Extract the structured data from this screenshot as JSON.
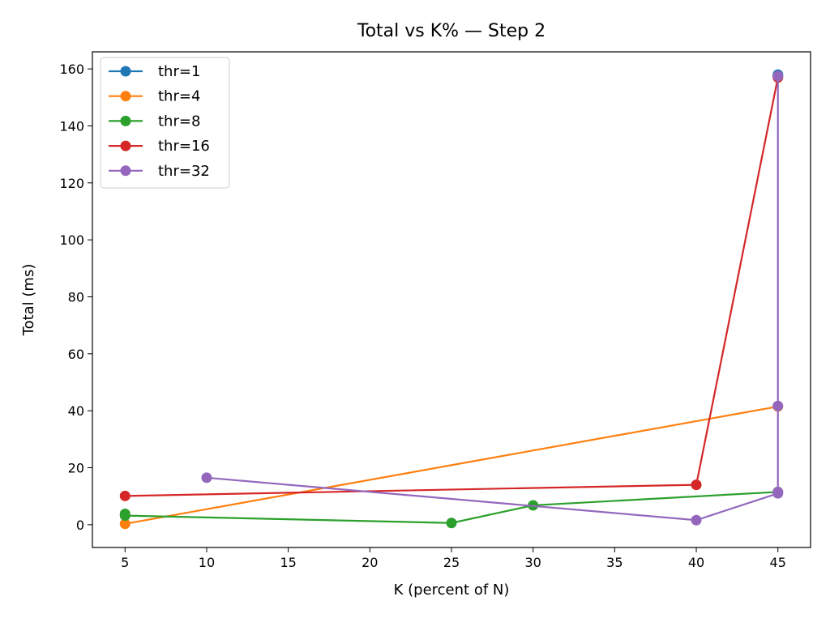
{
  "chart_data": {
    "type": "line",
    "title": "Total vs K% — Step 2",
    "xlabel": "K (percent of N)",
    "ylabel": "Total (ms)",
    "xlim": [
      3,
      47
    ],
    "ylim": [
      -8,
      166
    ],
    "xticks": [
      5,
      10,
      15,
      20,
      25,
      30,
      35,
      40,
      45
    ],
    "yticks": [
      0,
      20,
      40,
      60,
      80,
      100,
      120,
      140,
      160
    ],
    "grid": false,
    "legend_position": "top-left",
    "series": [
      {
        "name": "thr=1",
        "color": "#1f77b4",
        "points": [
          [
            45,
            158
          ],
          [
            45,
            157.5
          ]
        ]
      },
      {
        "name": "thr=4",
        "color": "#ff7f0e",
        "points": [
          [
            5,
            0.3
          ],
          [
            45,
            41.5
          ]
        ]
      },
      {
        "name": "thr=8",
        "color": "#2ca02c",
        "points": [
          [
            5,
            3.8
          ],
          [
            5,
            3.2
          ],
          [
            25,
            0.6
          ],
          [
            30,
            6.8
          ],
          [
            45,
            11.5
          ]
        ]
      },
      {
        "name": "thr=16",
        "color": "#d62728",
        "points": [
          [
            5,
            10.1
          ],
          [
            40,
            14
          ],
          [
            45,
            157
          ]
        ]
      },
      {
        "name": "thr=32",
        "color": "#9467bd",
        "points": [
          [
            10,
            16.5
          ],
          [
            40,
            1.6
          ],
          [
            45,
            11
          ],
          [
            45,
            157.5
          ],
          [
            45,
            41.7
          ],
          [
            45,
            11.5
          ]
        ]
      }
    ]
  }
}
